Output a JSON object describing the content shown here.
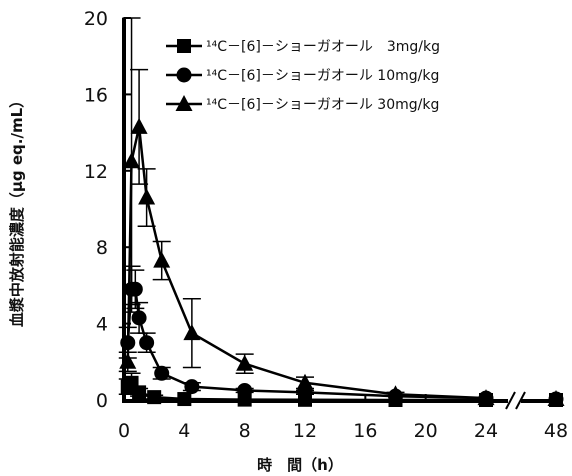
{
  "chart_data": {
    "type": "line",
    "xlabel": "時　間（h）",
    "ylabel": "血漿中放射能濃度（μg eq./mL）",
    "xlim": [
      0,
      48
    ],
    "ylim": [
      0,
      20
    ],
    "x_ticks": [
      "0",
      "4",
      "8",
      "12",
      "16",
      "20",
      "24",
      "48"
    ],
    "y_ticks": [
      "0",
      "4",
      "8",
      "12",
      "16",
      "20"
    ],
    "axis_break": "between 24 and 48",
    "grid": false,
    "legend_position": "top-right",
    "series": [
      {
        "name": "¹⁴C－[6]－ショーガオール　3mg/kg",
        "marker": "square",
        "x": [
          0.25,
          0.5,
          1,
          2,
          4,
          8,
          12,
          18,
          24,
          48
        ],
        "y": [
          0.7,
          0.9,
          0.4,
          0.15,
          0.05,
          0.02,
          0.01,
          0.0,
          0.0,
          0.0
        ],
        "err": [
          0.4,
          0.5,
          0.2,
          0.1,
          0,
          0,
          0,
          0,
          0,
          0
        ]
      },
      {
        "name": "¹⁴C－[6]－ショーガオール 10mg/kg",
        "marker": "circle",
        "x": [
          0.25,
          0.5,
          0.75,
          1,
          1.5,
          2.5,
          4.5,
          8,
          12,
          18,
          24,
          48
        ],
        "y": [
          3.0,
          5.8,
          5.8,
          4.3,
          3.0,
          1.4,
          0.7,
          0.5,
          0.4,
          0.2,
          0.1,
          0.05
        ],
        "err": [
          0.8,
          1.2,
          1.0,
          0.8,
          0.5,
          0.3,
          0.2,
          0.1,
          0.1,
          0,
          0,
          0
        ]
      },
      {
        "name": "¹⁴C－[6]－ショーガオール 30mg/kg",
        "marker": "triangle",
        "x": [
          0.25,
          0.5,
          1,
          1.5,
          2.5,
          4.5,
          8,
          12,
          18,
          24,
          48
        ],
        "y": [
          2.0,
          12.5,
          14.3,
          10.6,
          7.3,
          3.5,
          1.9,
          0.9,
          0.3,
          0.1,
          0.05
        ],
        "err": [
          0.5,
          7.5,
          3.0,
          1.5,
          1.0,
          1.8,
          0.5,
          0.3,
          0.1,
          0,
          0
        ]
      }
    ]
  }
}
